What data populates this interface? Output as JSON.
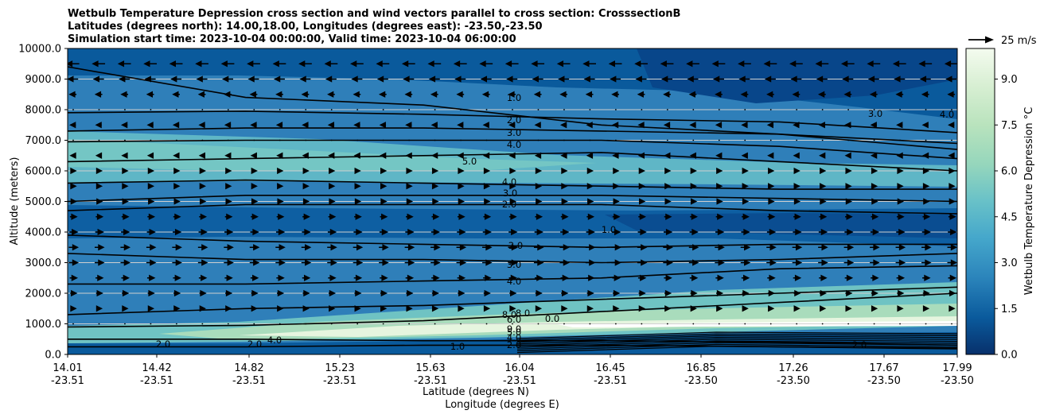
{
  "chart_data": {
    "type": "contour",
    "title_lines": [
      "Wetbulb Temperature Depression cross section and wind vectors parallel to cross section: CrosssectionB",
      "Latitudes (degrees north): 14.00,18.00, Longitudes (degrees east): -23.50,-23.50",
      "Simulation start time: 2023-10-04 00:00:00, Valid time: 2023-10-04 06:00:00"
    ],
    "ylabel": "Altitude (meters)",
    "xlabel_lat": "Latitude (degrees N)",
    "xlabel_lon": "Longitude (degrees E)",
    "ylim": [
      0,
      10000
    ],
    "yticks": [
      "0.0",
      "1000.0",
      "2000.0",
      "3000.0",
      "4000.0",
      "5000.0",
      "6000.0",
      "7000.0",
      "8000.0",
      "9000.0",
      "10000.0"
    ],
    "xticks_lat": [
      "14.01",
      "14.42",
      "14.82",
      "15.23",
      "15.63",
      "16.04",
      "16.45",
      "16.85",
      "17.26",
      "17.67",
      "17.99"
    ],
    "xticks_lon": [
      "-23.51",
      "-23.51",
      "-23.51",
      "-23.51",
      "-23.51",
      "-23.51",
      "-23.51",
      "-23.50",
      "-23.50",
      "-23.50",
      "-23.50"
    ],
    "colorbar_label": "Wetbulb Temperature Depression °C",
    "colorbar_ticks": [
      "0.0",
      "1.5",
      "3.0",
      "4.5",
      "6.0",
      "7.5",
      "9.0"
    ],
    "colorbar_range": [
      0,
      10
    ],
    "quiver_key": "25 m/s",
    "contour_labels": [
      "1.0",
      "2.0",
      "3.0",
      "4.0",
      "5.0",
      "4.0",
      "3.0",
      "2.0",
      "2.0",
      "3.0",
      "4.0",
      "8.0",
      "8.0",
      "6.0",
      "9.0",
      "5.0",
      "4.0",
      "2.0",
      "1.0",
      "1.0",
      "3.0",
      "4.0",
      "0.0",
      "4.0",
      "2.0",
      "2.0",
      "2.0"
    ],
    "contour_levels": [
      {
        "level": 1,
        "alts": [
          9400,
          8400,
          8150,
          7500,
          7200,
          6700
        ]
      },
      {
        "level": 2,
        "alts": [
          7900,
          7950,
          7850,
          7700,
          7600,
          7250
        ]
      },
      {
        "level": 3,
        "alts": [
          7300,
          7400,
          7400,
          7300,
          7200,
          6900
        ]
      },
      {
        "level": 4,
        "alts": [
          6950,
          7000,
          7000,
          7000,
          6800,
          6400
        ]
      },
      {
        "level": 5,
        "alts": [
          6300,
          6400,
          6500,
          6600,
          6300,
          6000
        ]
      },
      {
        "level": 4,
        "alts": [
          5600,
          5700,
          5600,
          5500,
          5400,
          5400
        ]
      },
      {
        "level": 3,
        "alts": [
          5000,
          5200,
          5200,
          5200,
          5100,
          5000
        ]
      },
      {
        "level": 2,
        "alts": [
          4700,
          4900,
          4900,
          4900,
          4700,
          4600
        ]
      },
      {
        "level": 2,
        "alts": [
          3900,
          3700,
          3600,
          3500,
          3600,
          3600
        ]
      },
      {
        "level": 3,
        "alts": [
          3300,
          3100,
          3100,
          3000,
          3100,
          3300
        ]
      },
      {
        "level": 4,
        "alts": [
          2300,
          2300,
          2400,
          2500,
          2800,
          2900
        ]
      },
      {
        "level": 6,
        "alts": [
          1300,
          1500,
          1600,
          1800,
          2000,
          2200
        ]
      },
      {
        "level": 8,
        "alts": [
          900,
          950,
          1100,
          1400,
          1700,
          2000
        ]
      },
      {
        "level": 3,
        "alts": [
          500,
          500,
          450,
          450,
          400,
          300
        ]
      },
      {
        "level": 2,
        "alts": [
          250,
          250,
          300,
          300,
          250,
          200
        ]
      }
    ],
    "wind_rows": [
      {
        "alt": 9500,
        "dir": -1,
        "strength": 0.8
      },
      {
        "alt": 9000,
        "dir": -1,
        "strength": 0.6
      },
      {
        "alt": 8500,
        "dir": -1,
        "strength": 0.3
      },
      {
        "alt": 8000,
        "dir": 0,
        "strength": 0.1
      },
      {
        "alt": 7500,
        "dir": -1,
        "strength": 0.2
      },
      {
        "alt": 7000,
        "dir": 0,
        "strength": 0.1
      },
      {
        "alt": 6500,
        "dir": -1,
        "strength": 0.15
      },
      {
        "alt": 6000,
        "dir": 1,
        "strength": 0.15
      },
      {
        "alt": 5500,
        "dir": 1,
        "strength": 0.15
      },
      {
        "alt": 5000,
        "dir": 1,
        "strength": 0.2
      },
      {
        "alt": 4500,
        "dir": 1,
        "strength": 0.3
      },
      {
        "alt": 4000,
        "dir": 1,
        "strength": 0.4
      },
      {
        "alt": 3500,
        "dir": 1,
        "strength": 0.5
      },
      {
        "alt": 3000,
        "dir": 1,
        "strength": 0.5
      },
      {
        "alt": 2500,
        "dir": 1,
        "strength": 0.35
      },
      {
        "alt": 2000,
        "dir": 1,
        "strength": 0.25
      },
      {
        "alt": 1500,
        "dir": 1,
        "strength": 0.15
      },
      {
        "alt": 1000,
        "dir": 1,
        "strength": 0.1
      }
    ]
  }
}
